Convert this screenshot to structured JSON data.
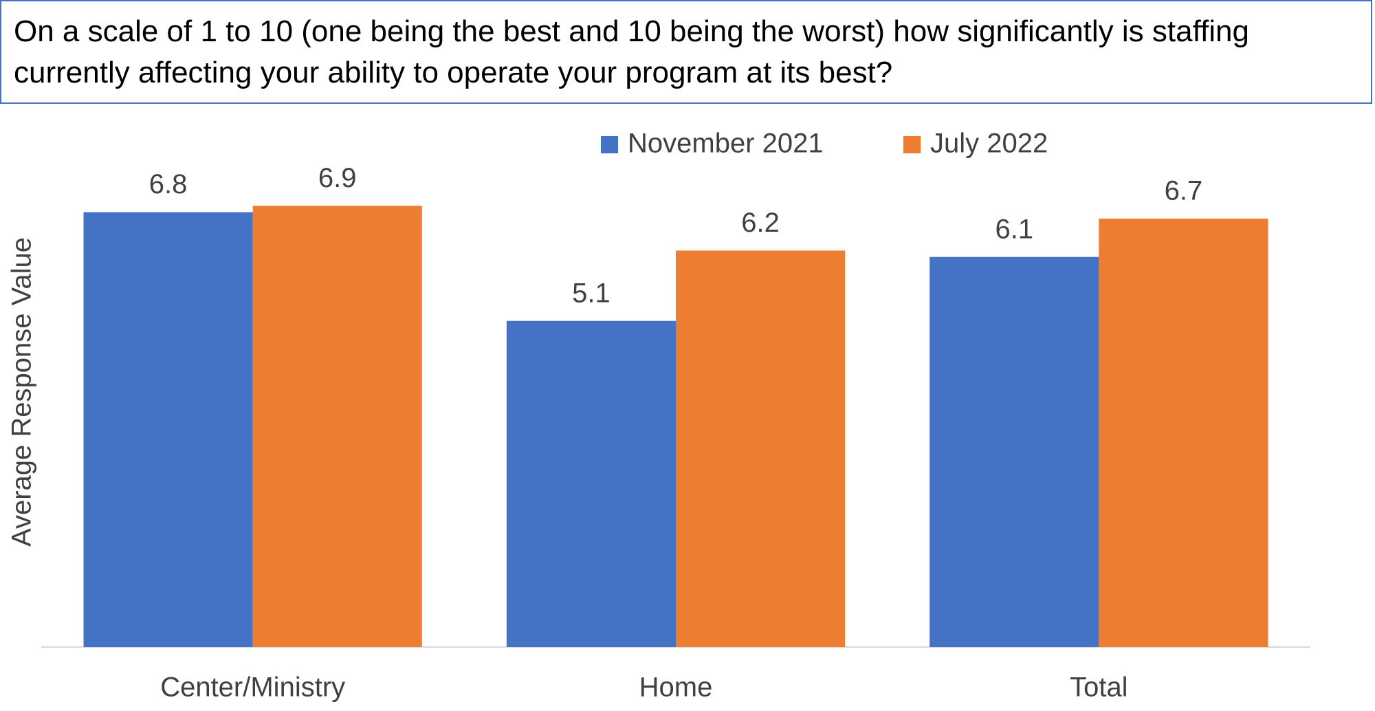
{
  "chart_data": {
    "type": "bar",
    "title": "On a scale of 1 to 10 (one being the best and 10 being the worst) how significantly is staffing currently affecting your ability to operate your program at its best?",
    "ylabel": "Average Response Value",
    "categories": [
      "Center/Ministry",
      "Home",
      "Total"
    ],
    "series": [
      {
        "name": "November 2021",
        "color": "#4472c4",
        "values": [
          6.8,
          5.1,
          6.1
        ]
      },
      {
        "name": "July 2022",
        "color": "#ed7d31",
        "values": [
          6.9,
          6.2,
          6.7
        ]
      }
    ],
    "ylim": [
      0,
      8
    ],
    "legend": "top",
    "grid": false
  }
}
